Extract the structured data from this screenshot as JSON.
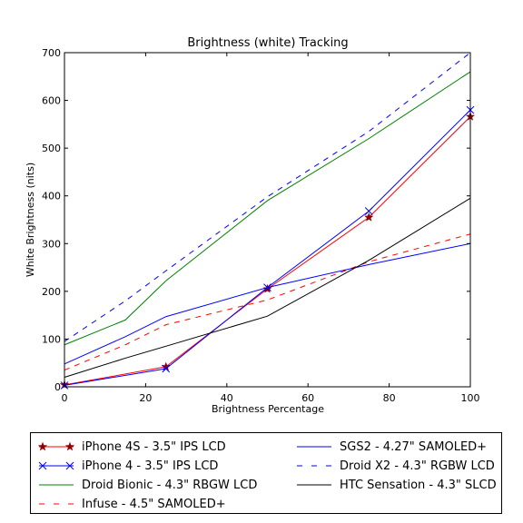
{
  "chart_data": {
    "type": "line",
    "title": "Brightness (white) Tracking",
    "xlabel": "Brightness Percentage",
    "ylabel": "White Brightness (nits)",
    "xlim": [
      0,
      100
    ],
    "ylim": [
      0,
      700
    ],
    "xticks": [
      0,
      20,
      40,
      60,
      80,
      100
    ],
    "yticks": [
      0,
      100,
      200,
      300,
      400,
      500,
      600,
      700
    ],
    "grid": false,
    "legend_position": "below",
    "series": [
      {
        "name": "iPhone 4S - 3.5\" IPS LCD",
        "color": "#ff0000",
        "dash": "solid",
        "marker": "star",
        "marker_color": "#8b0000",
        "x": [
          0,
          25,
          50,
          75,
          100
        ],
        "y": [
          4,
          42,
          205,
          355,
          566
        ]
      },
      {
        "name": "iPhone 4 - 3.5\" IPS LCD",
        "color": "#0000ff",
        "dash": "solid",
        "marker": "x",
        "marker_color": "#0000ff",
        "x": [
          0,
          25,
          50,
          75,
          100
        ],
        "y": [
          3,
          38,
          208,
          368,
          580
        ]
      },
      {
        "name": "Droid Bionic - 4.3\" RBGW LCD",
        "color": "#008000",
        "dash": "solid",
        "marker": "none",
        "x": [
          0,
          15,
          25,
          50,
          75,
          100
        ],
        "y": [
          88,
          140,
          222,
          390,
          520,
          660
        ]
      },
      {
        "name": "Infuse - 4.5\" SAMOLED+",
        "color": "#ff0000",
        "dash": "dashed",
        "marker": "none",
        "x": [
          0,
          15,
          25,
          50,
          75,
          100
        ],
        "y": [
          35,
          88,
          130,
          182,
          262,
          320
        ]
      },
      {
        "name": "SGS2 - 4.27\" SAMOLED+",
        "color": "#0000ff",
        "dash": "solid",
        "marker": "none",
        "x": [
          0,
          15,
          25,
          50,
          75,
          100
        ],
        "y": [
          48,
          105,
          147,
          208,
          256,
          300
        ]
      },
      {
        "name": "Droid X2 - 4.3\" RGBW LCD",
        "color": "#0000ff",
        "dash": "dashed",
        "marker": "none",
        "x": [
          0,
          15,
          25,
          50,
          75,
          100
        ],
        "y": [
          95,
          180,
          243,
          398,
          535,
          700
        ]
      },
      {
        "name": "HTC Sensation - 4.3\" SLCD",
        "color": "#000000",
        "dash": "solid",
        "marker": "none",
        "x": [
          0,
          15,
          25,
          50,
          75,
          100
        ],
        "y": [
          20,
          60,
          85,
          148,
          265,
          395
        ]
      }
    ]
  }
}
